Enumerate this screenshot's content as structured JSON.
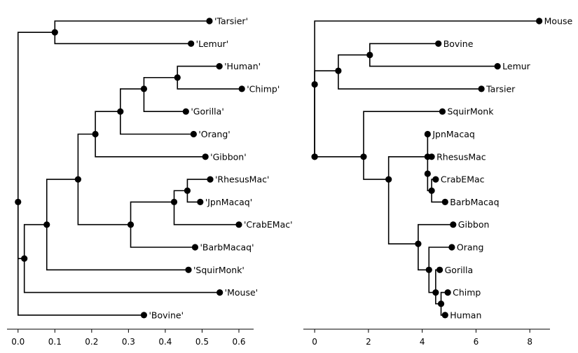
{
  "trees": [
    {
      "axis": {
        "ticks": [
          0,
          0.1,
          0.2,
          0.3,
          0.4,
          0.5,
          0.6
        ],
        "tick_labels": [
          "0.0",
          "0.1",
          "0.2",
          "0.3",
          "0.4",
          "0.5",
          "0.6"
        ],
        "xlim": [
          -0.03,
          0.64
        ]
      },
      "nodes": [
        {
          "id": "root",
          "x": 0.0,
          "row": 8.0
        },
        {
          "id": "n_tl",
          "x": 0.1,
          "row": 0.5,
          "parent": "root"
        },
        {
          "id": "tarsier",
          "x": 0.52,
          "row": 0,
          "parent": "n_tl",
          "label": "'Tarsier'"
        },
        {
          "id": "lemur",
          "x": 0.47,
          "row": 1,
          "parent": "n_tl",
          "label": "'Lemur'"
        },
        {
          "id": "n_rest",
          "x": 0.017,
          "row": 10.5,
          "parent": "root"
        },
        {
          "id": "n_a",
          "x": 0.078,
          "row": 9.0,
          "parent": "n_rest"
        },
        {
          "id": "n_b",
          "x": 0.163,
          "row": 7.0,
          "parent": "n_a"
        },
        {
          "id": "n_ape1",
          "x": 0.21,
          "row": 5.0,
          "parent": "n_b"
        },
        {
          "id": "n_ape2",
          "x": 0.278,
          "row": 4.0,
          "parent": "n_ape1"
        },
        {
          "id": "n_ape3",
          "x": 0.342,
          "row": 3.0,
          "parent": "n_ape2"
        },
        {
          "id": "n_hc",
          "x": 0.433,
          "row": 2.5,
          "parent": "n_ape3"
        },
        {
          "id": "human",
          "x": 0.547,
          "row": 2,
          "parent": "n_hc",
          "label": "'Human'"
        },
        {
          "id": "chimp",
          "x": 0.608,
          "row": 3,
          "parent": "n_hc",
          "label": "'Chimp'"
        },
        {
          "id": "gorilla",
          "x": 0.456,
          "row": 4,
          "parent": "n_ape3",
          "label": "'Gorilla'"
        },
        {
          "id": "orang",
          "x": 0.477,
          "row": 5,
          "parent": "n_ape2",
          "label": "'Orang'"
        },
        {
          "id": "gibbon",
          "x": 0.509,
          "row": 6,
          "parent": "n_ape1",
          "label": "'Gibbon'"
        },
        {
          "id": "n_om",
          "x": 0.306,
          "row": 9.0,
          "parent": "n_b"
        },
        {
          "id": "n_om2",
          "x": 0.424,
          "row": 8.0,
          "parent": "n_om"
        },
        {
          "id": "n_rj",
          "x": 0.46,
          "row": 7.5,
          "parent": "n_om2"
        },
        {
          "id": "rhesus",
          "x": 0.522,
          "row": 7,
          "parent": "n_rj",
          "label": "'RhesusMac'"
        },
        {
          "id": "jpn",
          "x": 0.495,
          "row": 8,
          "parent": "n_rj",
          "label": "'JpnMacaq'"
        },
        {
          "id": "crab",
          "x": 0.6,
          "row": 9,
          "parent": "n_om2",
          "label": "'CrabEMac'"
        },
        {
          "id": "barb",
          "x": 0.481,
          "row": 10,
          "parent": "n_om",
          "label": "'BarbMacaq'"
        },
        {
          "id": "squir",
          "x": 0.463,
          "row": 11,
          "parent": "n_a",
          "label": "'SquirMonk'"
        },
        {
          "id": "mouse",
          "x": 0.548,
          "row": 12,
          "parent": "n_rest",
          "label": "'Mouse'"
        },
        {
          "id": "bovine",
          "x": 0.342,
          "row": 13,
          "parent": "root",
          "label": "'Bovine'"
        }
      ]
    },
    {
      "axis": {
        "ticks": [
          0,
          2,
          4,
          6,
          8
        ],
        "tick_labels": [
          "0",
          "2",
          "4",
          "6",
          "8"
        ],
        "xlim": [
          -0.42,
          8.75
        ]
      },
      "nodes": [
        {
          "id": "root",
          "x": 0.0,
          "row": 6.0
        },
        {
          "id": "mouse",
          "x": 8.35,
          "row": 0,
          "parent": "root",
          "label": "Mouse"
        },
        {
          "id": "n_blt",
          "x": 0.0,
          "row": 2.8,
          "parent": "root"
        },
        {
          "id": "n_bl",
          "x": 0.88,
          "row": 2.2,
          "parent": "n_blt"
        },
        {
          "id": "n_bl2",
          "x": 2.05,
          "row": 1.5,
          "parent": "n_bl"
        },
        {
          "id": "bovine",
          "x": 4.6,
          "row": 1,
          "parent": "n_bl2",
          "label": "Bovine"
        },
        {
          "id": "lemur",
          "x": 6.8,
          "row": 2,
          "parent": "n_bl2",
          "label": "Lemur"
        },
        {
          "id": "tarsier",
          "x": 6.2,
          "row": 3,
          "parent": "n_bl",
          "label": "Tarsier"
        },
        {
          "id": "n_p",
          "x": 0.0,
          "row": 6.0,
          "parent": "n_blt"
        },
        {
          "id": "n_p2",
          "x": 1.82,
          "row": 6.0,
          "parent": "n_p"
        },
        {
          "id": "squir",
          "x": 4.75,
          "row": 4,
          "parent": "n_p2",
          "label": "SquirMonk"
        },
        {
          "id": "n_p3",
          "x": 2.75,
          "row": 7.0,
          "parent": "n_p2"
        },
        {
          "id": "n_om",
          "x": 4.2,
          "row": 6.0,
          "parent": "n_p3"
        },
        {
          "id": "jpn",
          "x": 4.2,
          "row": 5,
          "parent": "n_om",
          "label": "JpnMacaq"
        },
        {
          "id": "rhesus",
          "x": 4.35,
          "row": 6,
          "parent": "n_om",
          "label": "RhesusMac"
        },
        {
          "id": "n_om2",
          "x": 4.2,
          "row": 6.75,
          "parent": "n_om"
        },
        {
          "id": "n_cb",
          "x": 4.35,
          "row": 7.5,
          "parent": "n_om2"
        },
        {
          "id": "crab",
          "x": 4.5,
          "row": 7,
          "parent": "n_cb",
          "label": "CrabEMac"
        },
        {
          "id": "barb",
          "x": 4.85,
          "row": 8,
          "parent": "n_cb",
          "label": "BarbMacaq"
        },
        {
          "id": "n_ape",
          "x": 3.85,
          "row": 9.85,
          "parent": "n_p3"
        },
        {
          "id": "gibbon",
          "x": 5.15,
          "row": 9,
          "parent": "n_ape",
          "label": "Gibbon"
        },
        {
          "id": "n_ape2",
          "x": 4.25,
          "row": 11,
          "parent": "n_ape"
        },
        {
          "id": "orang",
          "x": 5.1,
          "row": 10,
          "parent": "n_ape2",
          "label": "Orang"
        },
        {
          "id": "n_ape3",
          "x": 4.5,
          "row": 12,
          "parent": "n_ape2"
        },
        {
          "id": "gorilla",
          "x": 4.65,
          "row": 11,
          "parent": "n_ape3",
          "label": "Gorilla"
        },
        {
          "id": "n_hc",
          "x": 4.7,
          "row": 12.5,
          "parent": "n_ape3"
        },
        {
          "id": "chimp",
          "x": 4.95,
          "row": 12,
          "parent": "n_hc",
          "label": "Chimp"
        },
        {
          "id": "human",
          "x": 4.85,
          "row": 13,
          "parent": "n_hc",
          "label": "Human"
        }
      ]
    }
  ]
}
